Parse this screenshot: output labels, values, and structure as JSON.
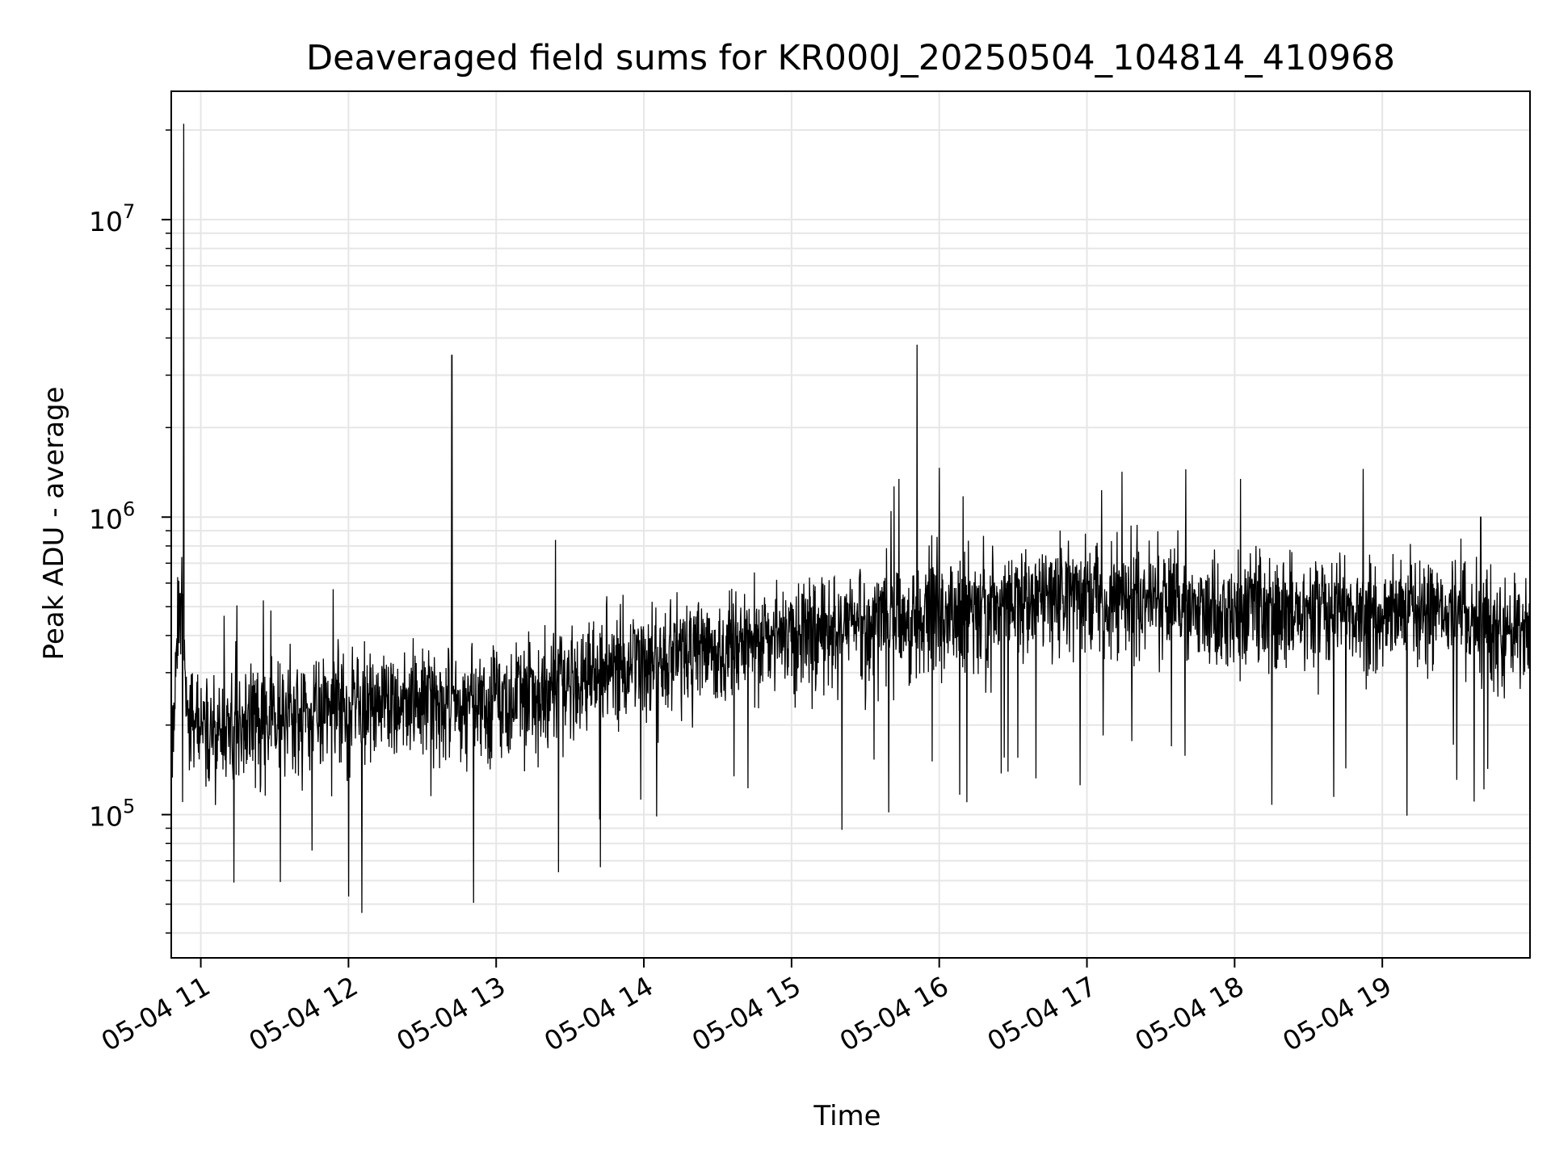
{
  "chart_data": {
    "type": "line",
    "title": "Deaveraged field sums for KR000J_20250504_104814_410968",
    "xlabel": "Time",
    "ylabel": "Peak ADU - average",
    "yscale": "log",
    "ylim": [
      33000,
      27000000
    ],
    "xlim": [
      "2025-05-04 10:48",
      "2025-05-04 20:00"
    ],
    "grid": true,
    "series_color": "#000000",
    "x_ticks": [
      "05-04 11",
      "05-04 12",
      "05-04 13",
      "05-04 14",
      "05-04 15",
      "05-04 16",
      "05-04 17",
      "05-04 18",
      "05-04 19"
    ],
    "y_ticks": [
      {
        "base": "10",
        "exp": "5",
        "value": 100000
      },
      {
        "base": "10",
        "exp": "6",
        "value": 1000000
      },
      {
        "base": "10",
        "exp": "7",
        "value": 10000000
      }
    ],
    "series": [
      {
        "approx_points": [
          [
            "2025-05-04 10:48",
            180000
          ],
          [
            "2025-05-04 10:52",
            600000
          ],
          [
            "2025-05-04 10:53",
            21000000
          ],
          [
            "2025-05-04 10:55",
            210000
          ],
          [
            "2025-05-04 11:00",
            200000
          ],
          [
            "2025-05-04 11:30",
            220000
          ],
          [
            "2025-05-04 12:00",
            230000
          ],
          [
            "2025-05-04 12:30",
            240000
          ],
          [
            "2025-05-04 12:42",
            3500000
          ],
          [
            "2025-05-04 12:50",
            240000
          ],
          [
            "2025-05-04 13:30",
            280000
          ],
          [
            "2025-05-04 14:00",
            330000
          ],
          [
            "2025-05-04 14:30",
            370000
          ],
          [
            "2025-05-04 15:00",
            420000
          ],
          [
            "2025-05-04 15:30",
            440000
          ],
          [
            "2025-05-04 15:51",
            3800000
          ],
          [
            "2025-05-04 16:00",
            480000
          ],
          [
            "2025-05-04 16:30",
            520000
          ],
          [
            "2025-05-04 17:00",
            560000
          ],
          [
            "2025-05-04 17:30",
            530000
          ],
          [
            "2025-05-04 18:00",
            500000
          ],
          [
            "2025-05-04 18:30",
            490000
          ],
          [
            "2025-05-04 19:00",
            480000
          ],
          [
            "2025-05-04 19:30",
            500000
          ],
          [
            "2025-05-04 19:40",
            1000000
          ],
          [
            "2025-05-04 19:42",
            420000
          ],
          [
            "2025-05-04 20:00",
            430000
          ]
        ]
      }
    ]
  }
}
